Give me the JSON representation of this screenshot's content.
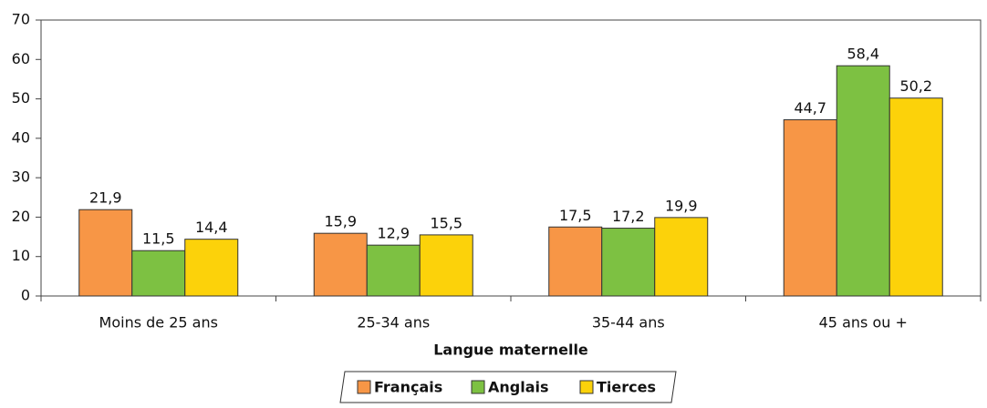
{
  "chart_data": {
    "type": "bar",
    "x_label": "Langue maternelle",
    "categories": [
      "Moins de 25 ans",
      "25-34 ans",
      "35-44 ans",
      "45 ans ou +"
    ],
    "series": [
      {
        "name": "Français",
        "color": "#f79646",
        "values": [
          21.9,
          15.9,
          17.5,
          44.7
        ],
        "value_labels": [
          "21,9",
          "15,9",
          "17,5",
          "44,7"
        ]
      },
      {
        "name": "Anglais",
        "color": "#7dc142",
        "values": [
          11.5,
          12.9,
          17.2,
          58.4
        ],
        "value_labels": [
          "11,5",
          "12,9",
          "17,2",
          "58,4"
        ]
      },
      {
        "name": "Tierces",
        "color": "#fcd20a",
        "values": [
          14.4,
          15.5,
          19.9,
          50.2
        ],
        "value_labels": [
          "14,4",
          "15,5",
          "19,9",
          "50,2"
        ]
      }
    ],
    "ylim": [
      0,
      70
    ],
    "yticks": [
      0,
      10,
      20,
      30,
      40,
      50,
      60,
      70
    ],
    "legend": "bottom"
  }
}
